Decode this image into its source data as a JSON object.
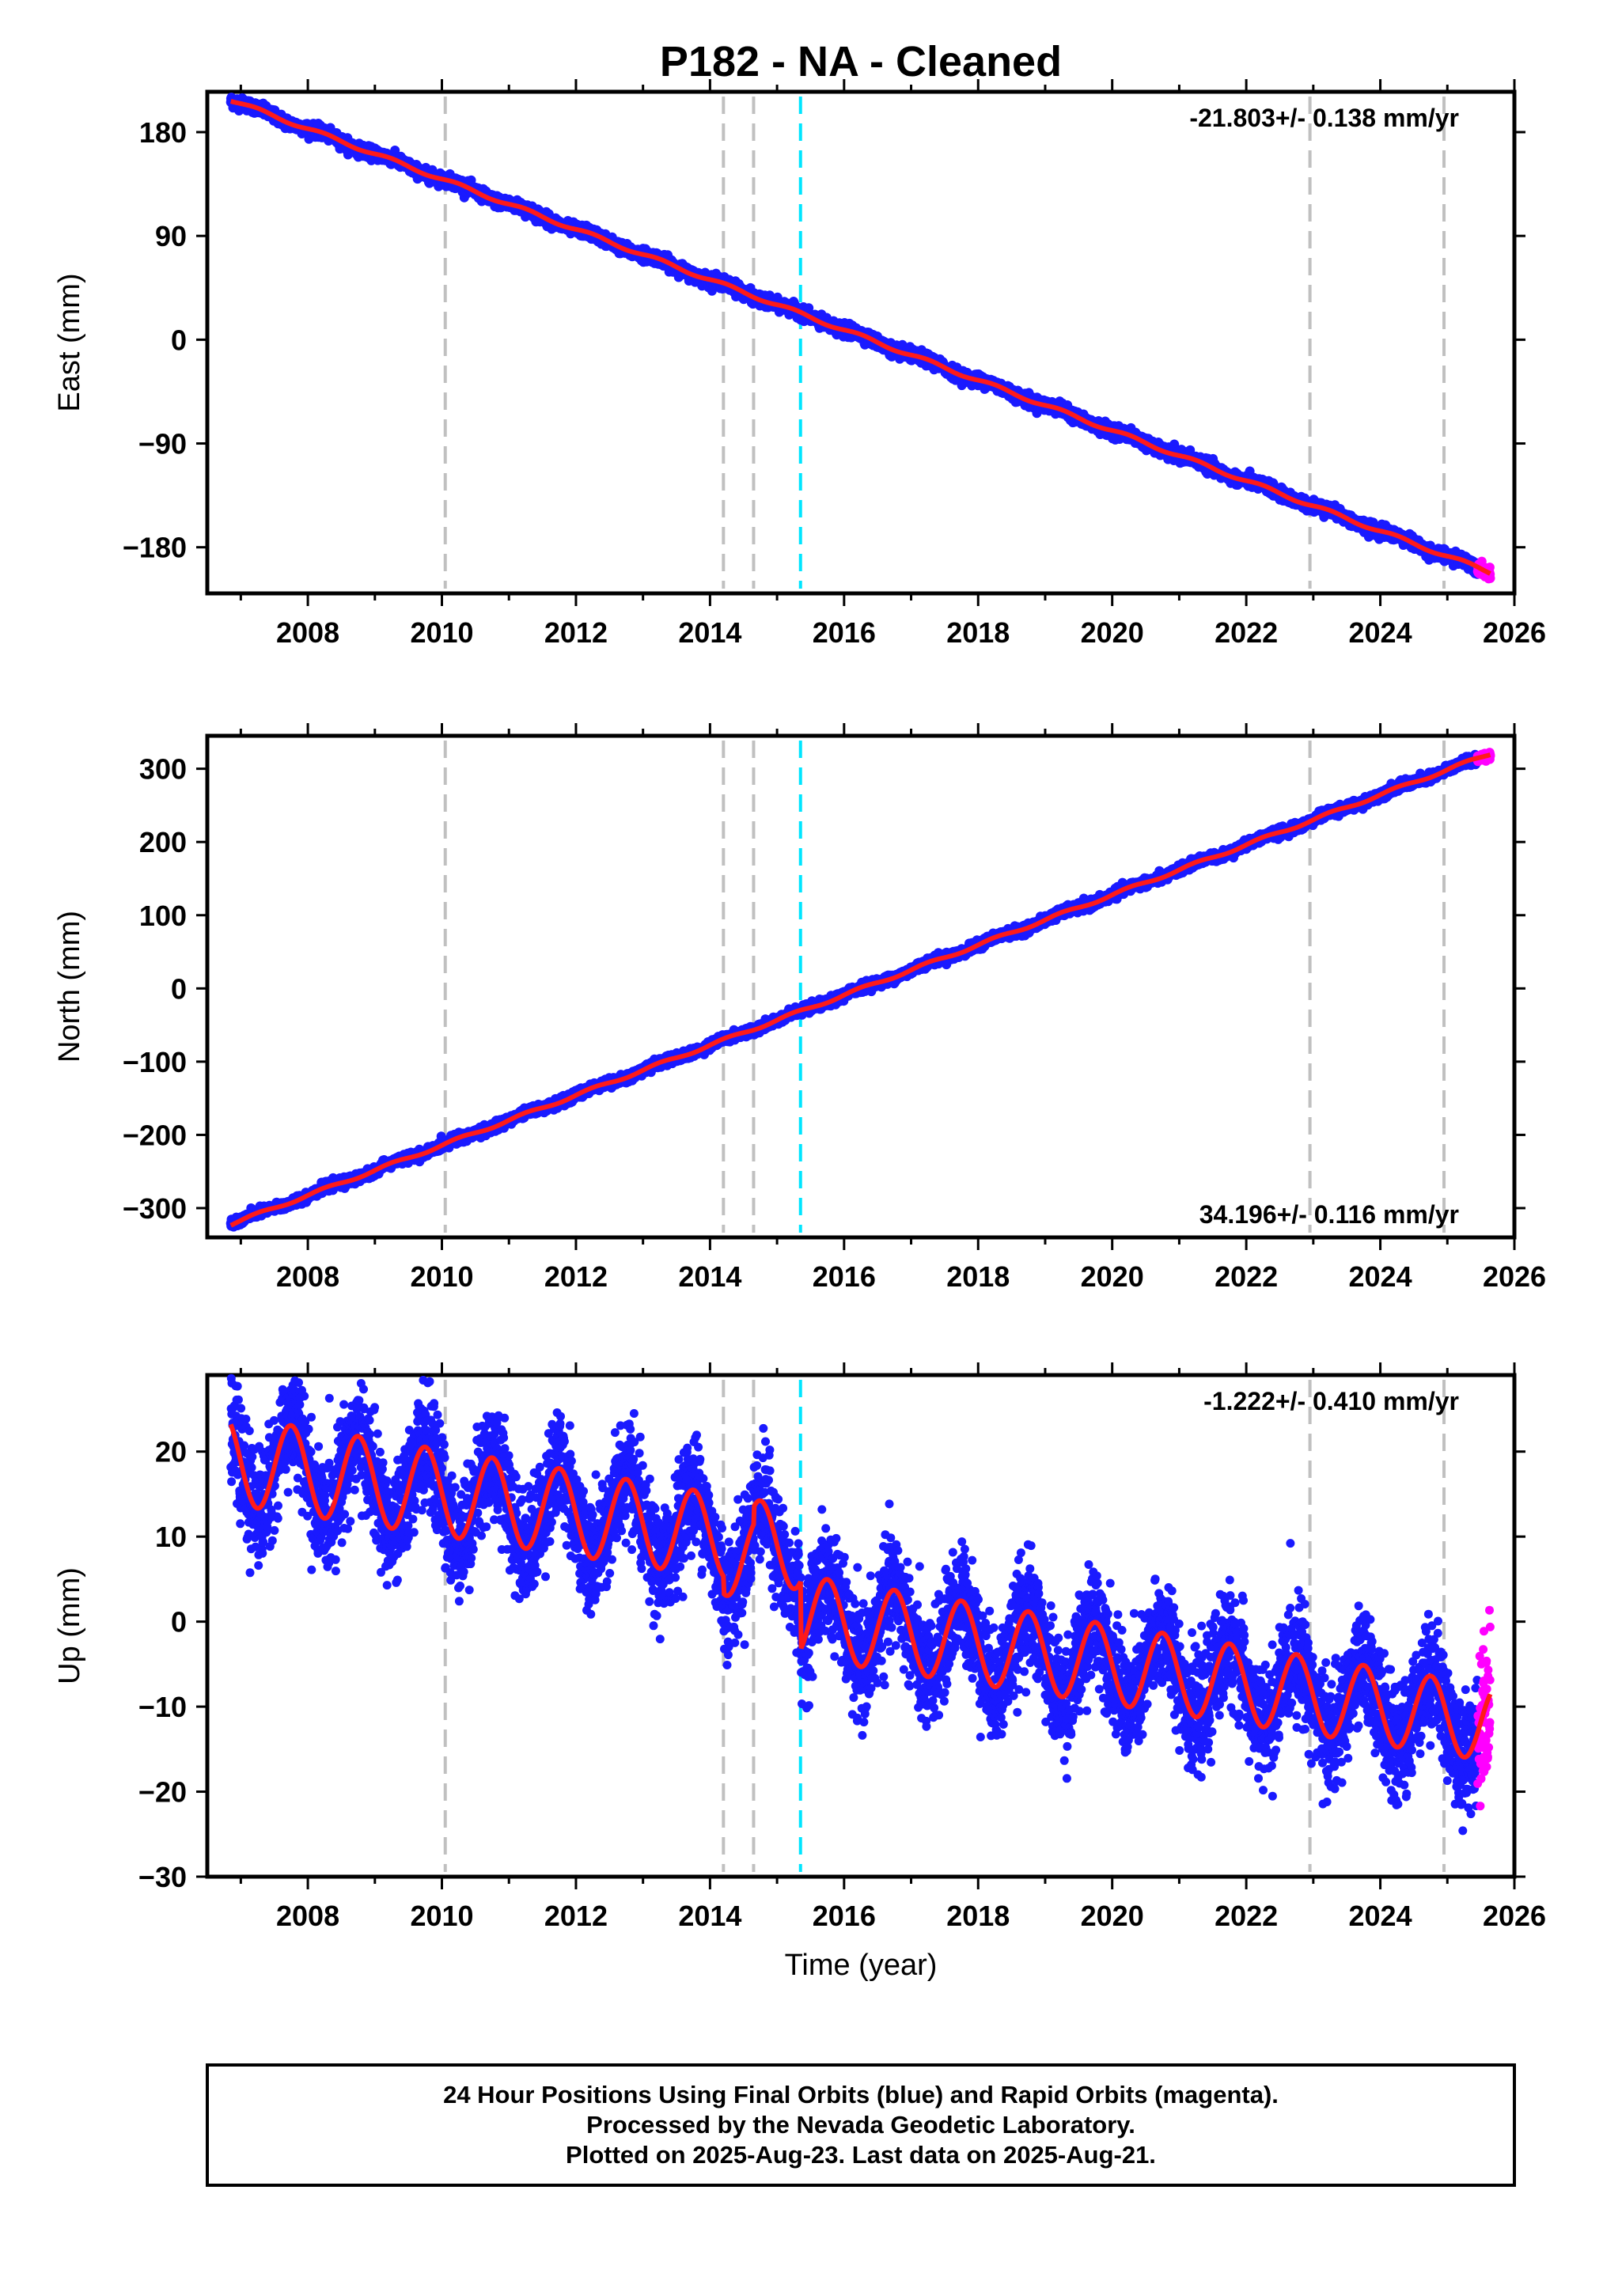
{
  "title": "P182  - NA - Cleaned",
  "colors": {
    "final_points": "#1a1aff",
    "rapid_points": "#ff00ff",
    "model_line": "#ff1a1a",
    "event_line": "#c0c0c0",
    "antenna_line": "#00e5ff",
    "frame": "#000000"
  },
  "chart_data": [
    {
      "type": "scatter",
      "component": "East",
      "ylabel": "East (mm)",
      "xlabel": "",
      "xlim": [
        2006.5,
        2026.0
      ],
      "ylim": [
        -220,
        215
      ],
      "yticks": [
        -180,
        -90,
        0,
        90,
        180
      ],
      "xticks": [
        2008,
        2010,
        2012,
        2014,
        2016,
        2018,
        2020,
        2022,
        2024,
        2026
      ],
      "rate_label": "-21.803+/- 0.138 mm/yr",
      "rate_position": "top-right",
      "trend": {
        "rate": -21.803,
        "value_at_start": 208,
        "x_start": 2006.85,
        "x_end": 2025.64
      },
      "noise": 2.5,
      "seasonal_amplitude": 1.5,
      "event_lines": [
        2010.05,
        2014.2,
        2014.65,
        2022.95,
        2024.95
      ],
      "antenna_change": 2015.35,
      "rapid_start": 2025.45
    },
    {
      "type": "scatter",
      "component": "North",
      "ylabel": "North (mm)",
      "xlabel": "",
      "xlim": [
        2006.5,
        2026.0
      ],
      "ylim": [
        -340,
        345
      ],
      "yticks": [
        -300,
        -200,
        -100,
        0,
        100,
        200,
        300
      ],
      "xticks": [
        2008,
        2010,
        2012,
        2014,
        2016,
        2018,
        2020,
        2022,
        2024,
        2026
      ],
      "rate_label": "34.196+/- 0.116 mm/yr",
      "rate_position": "bottom-right",
      "trend": {
        "rate": 34.196,
        "value_at_start": -322,
        "x_start": 2006.85,
        "x_end": 2025.64
      },
      "noise": 3,
      "seasonal_amplitude": 2,
      "event_lines": [
        2010.05,
        2014.2,
        2014.65,
        2022.95,
        2024.95
      ],
      "antenna_change": 2015.35,
      "rapid_start": 2025.45
    },
    {
      "type": "scatter",
      "component": "Up",
      "ylabel": "Up (mm)",
      "xlabel": "Time (year)",
      "xlim": [
        2006.5,
        2026.0
      ],
      "ylim": [
        -30,
        29
      ],
      "yticks": [
        -30,
        -20,
        -10,
        0,
        10,
        20
      ],
      "xticks": [
        2008,
        2010,
        2012,
        2014,
        2016,
        2018,
        2020,
        2022,
        2024,
        2026
      ],
      "rate_label": "-1.222+/- 0.410 mm/yr",
      "rate_position": "top-right",
      "trend": {
        "rate": -1.222,
        "value_at_start": 13.5,
        "x_start": 2006.85,
        "x_end": 2025.64
      },
      "noise": 3.2,
      "seasonal_amplitude": 5,
      "seasonal_peak_phase": 0.75,
      "offset_after_antenna": -8,
      "event_lines": [
        2010.05,
        2014.2,
        2014.65,
        2022.95,
        2024.95
      ],
      "antenna_change": 2015.35,
      "rapid_start": 2025.45
    }
  ],
  "footer": {
    "line1": "24 Hour Positions Using Final Orbits (blue) and Rapid Orbits (magenta).",
    "line2": "Processed by the Nevada Geodetic Laboratory.",
    "line3": "Plotted on 2025-Aug-23. Last data on 2025-Aug-21."
  }
}
